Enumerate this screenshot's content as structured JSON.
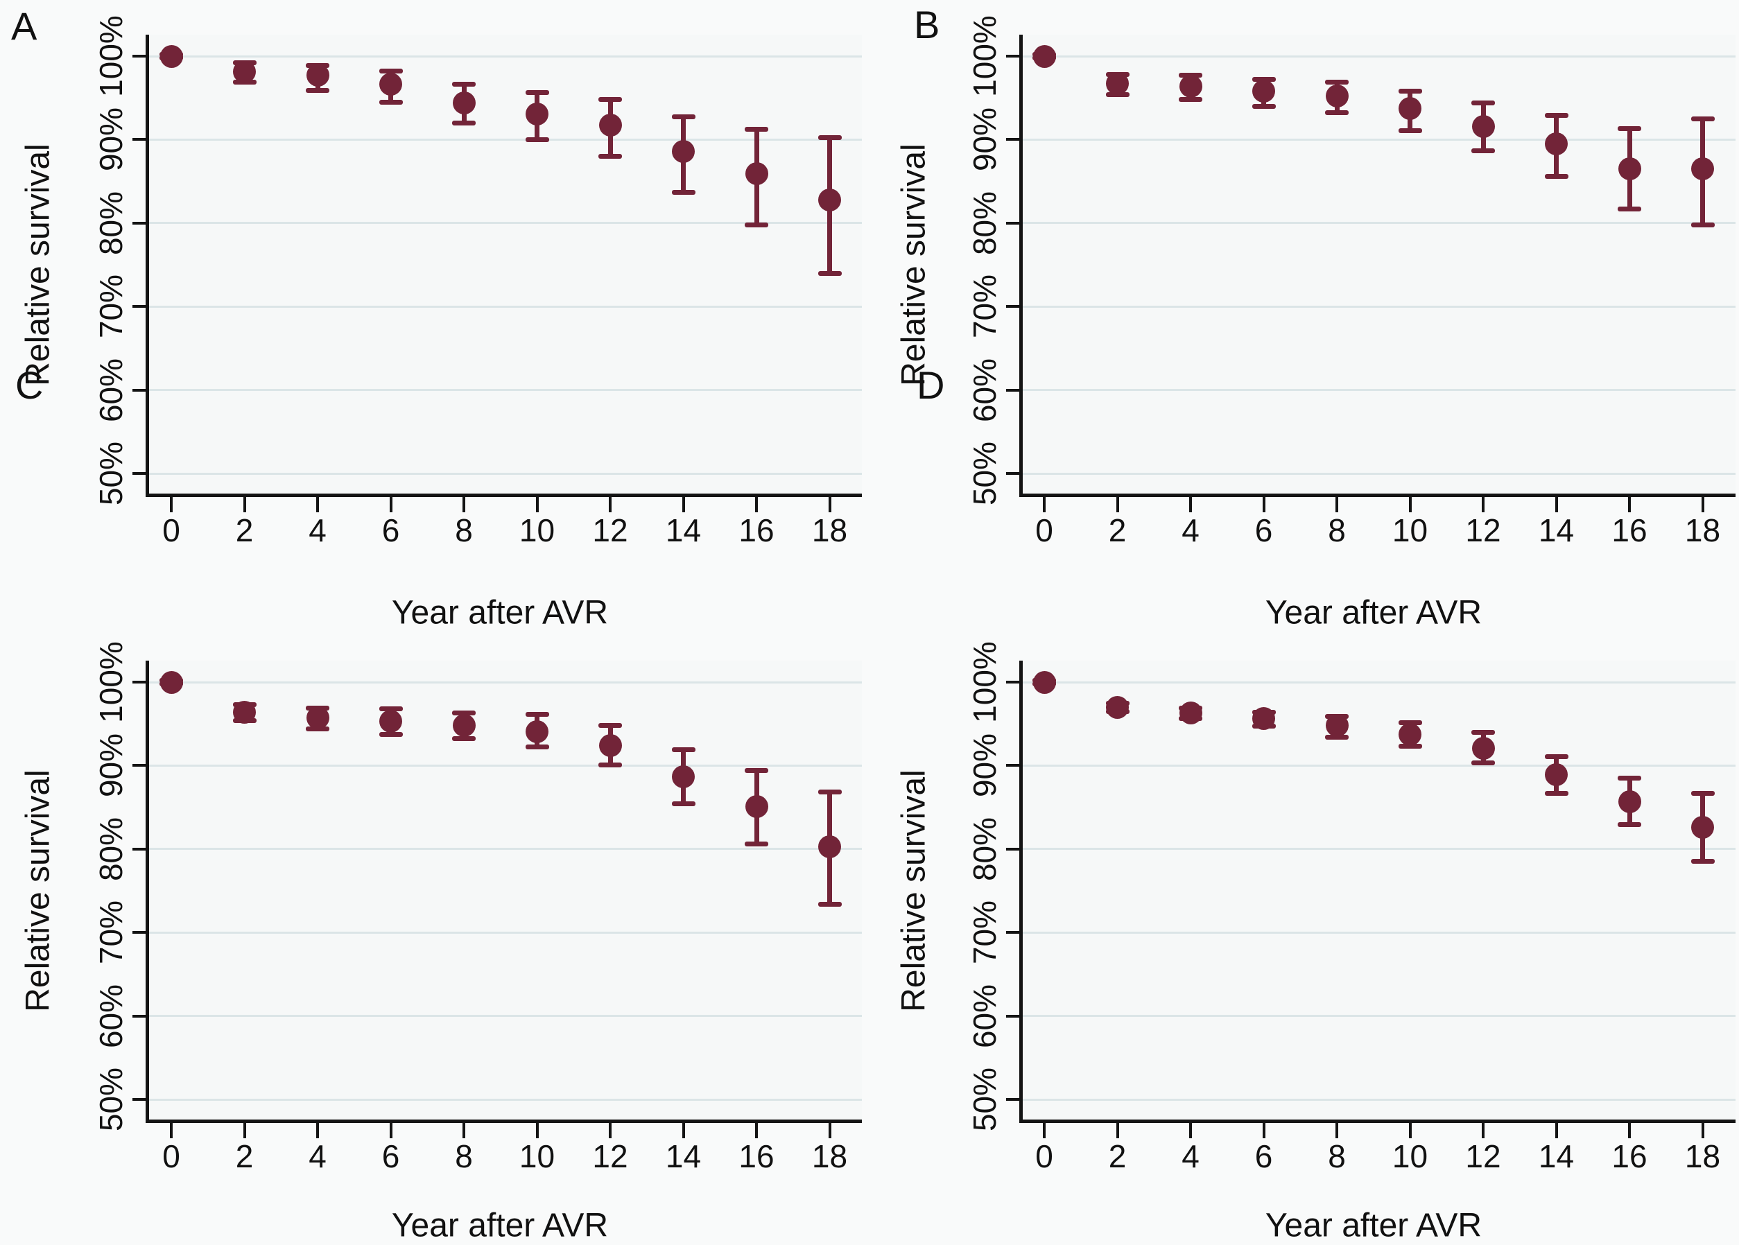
{
  "figure": {
    "background": "#f9fafa",
    "plot_background": "#f6f8f8",
    "grid_color": "#dbe5e7",
    "axis_color": "#141414",
    "marker_color": "#722438",
    "text_color": "#111111"
  },
  "labels": {
    "y_axis": "Relative survival",
    "x_axis": "Year after AVR",
    "y_tick_labels": [
      "50%",
      "60%",
      "70%",
      "80%",
      "90%",
      "100%"
    ],
    "x_tick_labels": [
      "0",
      "2",
      "4",
      "6",
      "8",
      "10",
      "12",
      "14",
      "16",
      "18"
    ]
  },
  "chart_data": [
    {
      "panel": "A",
      "type": "scatter",
      "marker": "circle-with-error-bars",
      "xlabel": "Year after AVR",
      "ylabel": "Relative survival",
      "x": [
        0,
        2,
        4,
        6,
        8,
        10,
        12,
        14,
        16,
        18
      ],
      "values": [
        100.0,
        98.1,
        97.7,
        96.6,
        94.4,
        93.1,
        91.7,
        88.6,
        85.9,
        82.8
      ],
      "ci_high": [
        100.2,
        99.2,
        98.9,
        98.2,
        96.6,
        95.6,
        94.8,
        92.7,
        91.2,
        90.2
      ],
      "ci_low": [
        99.8,
        96.9,
        95.9,
        94.5,
        92.0,
        90.0,
        88.0,
        83.7,
        79.8,
        74.0
      ],
      "ylim": [
        48,
        102
      ],
      "yticks": [
        50,
        60,
        70,
        80,
        90,
        100
      ],
      "grid": true,
      "legend": "none"
    },
    {
      "panel": "B",
      "type": "scatter",
      "marker": "circle-with-error-bars",
      "xlabel": "Year after AVR",
      "ylabel": "Relative survival",
      "x": [
        0,
        2,
        4,
        6,
        8,
        10,
        12,
        14,
        16,
        18
      ],
      "values": [
        100.0,
        96.7,
        96.4,
        95.8,
        95.2,
        93.7,
        91.6,
        89.5,
        86.5,
        86.5
      ],
      "ci_high": [
        100.2,
        97.8,
        97.7,
        97.2,
        96.9,
        95.8,
        94.4,
        92.9,
        91.3,
        92.5
      ],
      "ci_low": [
        99.8,
        95.4,
        94.8,
        94.0,
        93.2,
        91.1,
        88.7,
        85.6,
        81.7,
        79.8
      ],
      "ylim": [
        48,
        102
      ],
      "yticks": [
        50,
        60,
        70,
        80,
        90,
        100
      ],
      "grid": true,
      "legend": "none"
    },
    {
      "panel": "C",
      "type": "scatter",
      "marker": "circle-with-error-bars",
      "xlabel": "Year after AVR",
      "ylabel": "Relative survival",
      "x": [
        0,
        2,
        4,
        6,
        8,
        10,
        12,
        14,
        16,
        18
      ],
      "values": [
        100.0,
        96.4,
        95.7,
        95.3,
        94.8,
        94.1,
        92.4,
        88.7,
        85.1,
        80.3
      ],
      "ci_high": [
        100.2,
        97.3,
        96.9,
        96.8,
        96.3,
        96.1,
        94.8,
        91.9,
        89.4,
        86.8
      ],
      "ci_low": [
        99.8,
        95.4,
        94.4,
        93.7,
        93.2,
        92.2,
        90.1,
        85.4,
        80.6,
        73.4
      ],
      "ylim": [
        48,
        102
      ],
      "yticks": [
        50,
        60,
        70,
        80,
        90,
        100
      ],
      "grid": true,
      "legend": "none"
    },
    {
      "panel": "D",
      "type": "scatter",
      "marker": "circle-with-error-bars",
      "xlabel": "Year after AVR",
      "ylabel": "Relative survival",
      "x": [
        0,
        2,
        4,
        6,
        8,
        10,
        12,
        14,
        16,
        18
      ],
      "values": [
        100.0,
        97.0,
        96.3,
        95.6,
        94.8,
        93.7,
        92.1,
        88.9,
        85.7,
        82.6
      ],
      "ci_high": [
        100.2,
        97.5,
        96.9,
        96.4,
        95.9,
        95.1,
        94.0,
        91.1,
        88.5,
        86.7
      ],
      "ci_low": [
        99.8,
        96.5,
        95.6,
        94.7,
        93.4,
        92.3,
        90.3,
        86.7,
        82.9,
        78.5
      ],
      "ylim": [
        48,
        102
      ],
      "yticks": [
        50,
        60,
        70,
        80,
        90,
        100
      ],
      "grid": true,
      "legend": "none"
    }
  ]
}
